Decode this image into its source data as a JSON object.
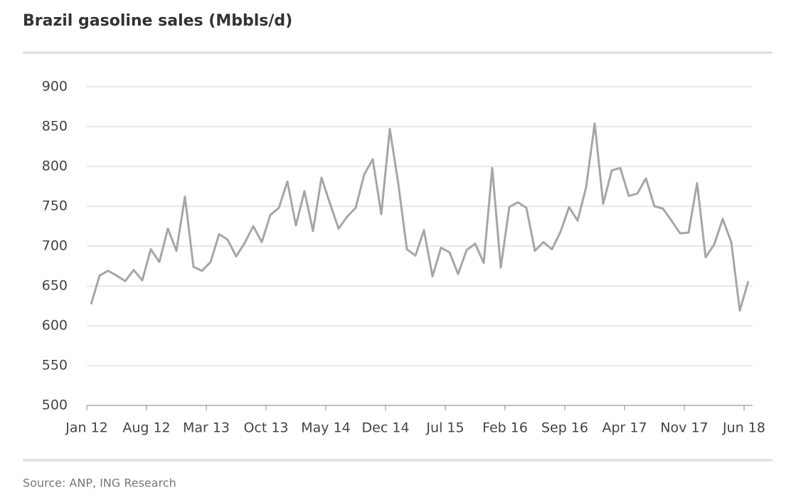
{
  "chart_data": {
    "type": "line",
    "title": "Brazil gasoline sales (Mbbls/d)",
    "source": "Source: ANP, ING Research",
    "categories": [
      "Jan 12",
      null,
      null,
      null,
      null,
      null,
      null,
      "Aug 12",
      null,
      null,
      null,
      null,
      null,
      null,
      "Mar 13",
      null,
      null,
      null,
      null,
      null,
      null,
      "Oct 13",
      null,
      null,
      null,
      null,
      null,
      null,
      "May 14",
      null,
      null,
      null,
      null,
      null,
      null,
      "Dec 14",
      null,
      null,
      null,
      null,
      null,
      null,
      "Jul 15",
      null,
      null,
      null,
      null,
      null,
      null,
      "Feb 16",
      null,
      null,
      null,
      null,
      null,
      null,
      "Sep 16",
      null,
      null,
      null,
      null,
      null,
      null,
      "Apr 17",
      null,
      null,
      null,
      null,
      null,
      null,
      "Nov 17",
      null,
      null,
      null,
      null,
      null,
      null,
      "Jun 18"
    ],
    "series": [
      {
        "name": "Brazil gasoline sales",
        "color": "#a6a6a6",
        "values": [
          627,
          663,
          669,
          663,
          656,
          670,
          657,
          696,
          680,
          722,
          694,
          762,
          674,
          669,
          680,
          715,
          708,
          687,
          704,
          725,
          705,
          739,
          748,
          781,
          726,
          769,
          719,
          786,
          753,
          722,
          737,
          748,
          790,
          809,
          740,
          847,
          778,
          696,
          688,
          720,
          662,
          698,
          692,
          665,
          695,
          703,
          679,
          798,
          673,
          749,
          755,
          748,
          694,
          705,
          696,
          718,
          749,
          732,
          774,
          854,
          753,
          795,
          798,
          763,
          766,
          785,
          750,
          747,
          732,
          716,
          717,
          779,
          686,
          702,
          734,
          705,
          619,
          656
        ]
      }
    ],
    "ylim": [
      500,
      900
    ],
    "yticks": [
      500,
      550,
      600,
      650,
      700,
      750,
      800,
      850,
      900
    ],
    "grid": true
  }
}
